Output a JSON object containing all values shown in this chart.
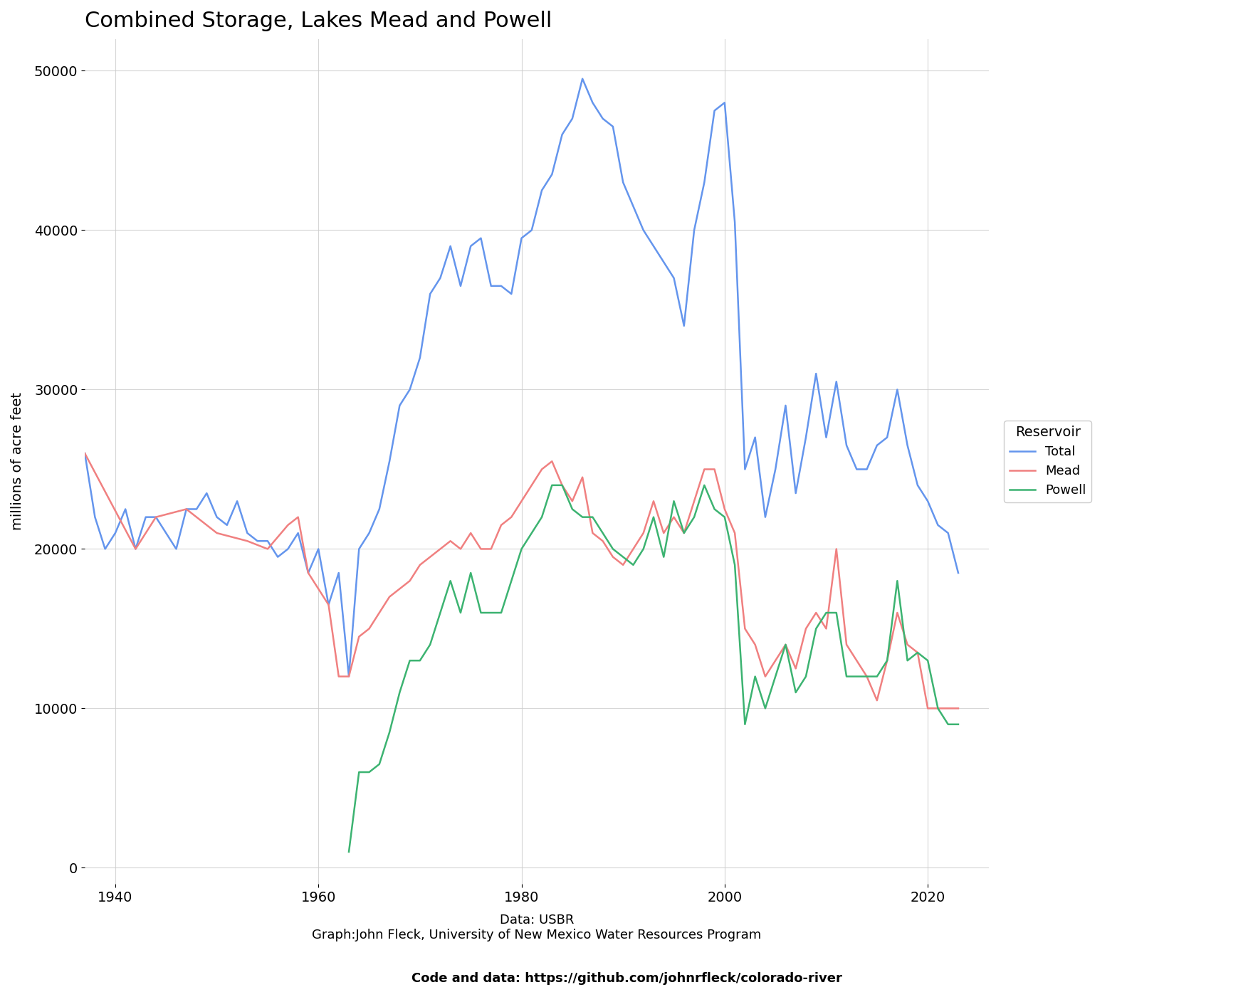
{
  "title": "Combined Storage, Lakes Mead and Powell",
  "xlabel_line1": "Data: USBR",
  "xlabel_line2": "Graph:John Fleck, University of New Mexico Water Resources Program",
  "footer": "Code and data: https://github.com/johnrfleck/colorado-river",
  "ylabel": "millions of acre feet",
  "legend_title": "Reservoir",
  "legend_labels": [
    "Mead",
    "Powell",
    "Total"
  ],
  "line_colors": {
    "Mead": "#F08080",
    "Powell": "#3CB371",
    "Total": "#6495ED"
  },
  "background_color": "#FFFFFF",
  "grid_color": "#CCCCCC",
  "xlim": [
    1937,
    2026
  ],
  "ylim": [
    -1000,
    52000
  ],
  "xticks": [
    1940,
    1960,
    1980,
    2000,
    2020
  ],
  "yticks": [
    0,
    10000,
    20000,
    30000,
    40000,
    50000
  ],
  "mead_data": {
    "years": [
      1937,
      1938,
      1939,
      1940,
      1941,
      1942,
      1943,
      1944,
      1945,
      1946,
      1947,
      1948,
      1949,
      1950,
      1951,
      1952,
      1953,
      1954,
      1955,
      1956,
      1957,
      1958,
      1959,
      1960,
      1961,
      1962,
      1963,
      1964,
      1965,
      1966,
      1967,
      1968,
      1969,
      1970,
      1971,
      1972,
      1973,
      1974,
      1975,
      1976,
      1977,
      1978,
      1979,
      1980,
      1981,
      1982,
      1983,
      1984,
      1985,
      1986,
      1987,
      1988,
      1989,
      1990,
      1991,
      1992,
      1993,
      1994,
      1995,
      1996,
      1997,
      1998,
      1999,
      2000,
      2001,
      2002,
      2003,
      2004,
      2005,
      2006,
      2007,
      2008,
      2009,
      2010,
      2011,
      2012,
      2013,
      2014,
      2015,
      2016,
      2017,
      2018,
      2019,
      2020,
      2021,
      2022,
      2023
    ],
    "values": [
      null,
      null,
      null,
      null,
      null,
      null,
      null,
      null,
      null,
      null,
      null,
      null,
      null,
      null,
      null,
      null,
      null,
      null,
      null,
      null,
      null,
      null,
      null,
      null,
      null,
      null,
      null,
      null,
      null,
      null,
      null,
      null,
      null,
      null,
      null,
      null,
      null,
      null,
      null,
      null,
      null,
      null,
      null,
      null,
      null,
      null,
      null,
      null,
      null,
      null,
      null,
      null,
      null,
      null,
      null,
      null,
      null,
      null,
      null,
      null,
      null,
      null,
      null,
      null,
      null,
      null,
      null,
      null,
      null,
      null,
      null,
      null,
      null,
      null,
      null,
      null,
      null,
      null,
      null,
      null,
      null,
      null,
      null,
      null,
      null,
      null,
      null
    ]
  },
  "mead": {
    "years": [
      1937,
      1942,
      1944,
      1947,
      1950,
      1953,
      1955,
      1957,
      1958,
      1959,
      1961,
      1962,
      1963,
      1964,
      1965,
      1966,
      1967,
      1968,
      1969,
      1970,
      1971,
      1972,
      1973,
      1974,
      1975,
      1976,
      1977,
      1978,
      1979,
      1980,
      1981,
      1982,
      1983,
      1984,
      1985,
      1986,
      1987,
      1988,
      1989,
      1990,
      1991,
      1992,
      1993,
      1994,
      1995,
      1996,
      1997,
      1998,
      1999,
      2000,
      2001,
      2002,
      2003,
      2004,
      2005,
      2006,
      2007,
      2008,
      2009,
      2010,
      2011,
      2012,
      2013,
      2014,
      2015,
      2016,
      2017,
      2018,
      2019,
      2020,
      2021,
      2022,
      2023
    ],
    "values": [
      26000,
      20000,
      22000,
      22500,
      21000,
      20500,
      20000,
      21500,
      22000,
      18500,
      16500,
      12000,
      12000,
      14500,
      15000,
      16000,
      17000,
      17500,
      18000,
      19000,
      19500,
      20000,
      20500,
      20000,
      21000,
      20000,
      20000,
      21500,
      22000,
      23000,
      24000,
      25000,
      25500,
      24000,
      23000,
      24500,
      21000,
      20500,
      19500,
      19000,
      20000,
      21000,
      23000,
      21000,
      22000,
      21000,
      23000,
      25000,
      25000,
      22500,
      21000,
      15000,
      14000,
      12000,
      13000,
      14000,
      12500,
      15000,
      16000,
      15000,
      20000,
      14000,
      13000,
      12000,
      10500,
      13000,
      16000,
      14000,
      13500,
      10000,
      10000,
      10000,
      10000
    ]
  },
  "powell": {
    "years": [
      1963,
      1964,
      1965,
      1966,
      1967,
      1968,
      1969,
      1970,
      1971,
      1972,
      1973,
      1974,
      1975,
      1976,
      1977,
      1978,
      1979,
      1980,
      1981,
      1982,
      1983,
      1984,
      1985,
      1986,
      1987,
      1988,
      1989,
      1990,
      1991,
      1992,
      1993,
      1994,
      1995,
      1996,
      1997,
      1998,
      1999,
      2000,
      2001,
      2002,
      2003,
      2004,
      2005,
      2006,
      2007,
      2008,
      2009,
      2010,
      2011,
      2012,
      2013,
      2014,
      2015,
      2016,
      2017,
      2018,
      2019,
      2020,
      2021,
      2022,
      2023
    ],
    "values": [
      1000,
      6000,
      6000,
      6500,
      8500,
      11000,
      13000,
      13000,
      14000,
      16000,
      18000,
      16000,
      18500,
      16000,
      16000,
      16000,
      18000,
      20000,
      21000,
      22000,
      24000,
      24000,
      22500,
      22000,
      22000,
      21000,
      20000,
      19500,
      19000,
      20000,
      22000,
      19500,
      23000,
      21000,
      22000,
      24000,
      22500,
      22000,
      19000,
      9000,
      12000,
      10000,
      12000,
      14000,
      11000,
      12000,
      15000,
      16000,
      16000,
      12000,
      12000,
      12000,
      12000,
      13000,
      18000,
      13000,
      13500,
      13000,
      10000,
      9000,
      9000
    ]
  },
  "total": {
    "years": [
      1937,
      1938,
      1939,
      1940,
      1941,
      1942,
      1943,
      1944,
      1945,
      1946,
      1947,
      1948,
      1949,
      1950,
      1951,
      1952,
      1953,
      1954,
      1955,
      1956,
      1957,
      1958,
      1959,
      1960,
      1961,
      1962,
      1963,
      1964,
      1965,
      1966,
      1967,
      1968,
      1969,
      1970,
      1971,
      1972,
      1973,
      1974,
      1975,
      1976,
      1977,
      1978,
      1979,
      1980,
      1981,
      1982,
      1983,
      1984,
      1985,
      1986,
      1987,
      1988,
      1989,
      1990,
      1991,
      1992,
      1993,
      1994,
      1995,
      1996,
      1997,
      1998,
      1999,
      2000,
      2001,
      2002,
      2003,
      2004,
      2005,
      2006,
      2007,
      2008,
      2009,
      2010,
      2011,
      2012,
      2013,
      2014,
      2015,
      2016,
      2017,
      2018,
      2019,
      2020,
      2021,
      2022,
      2023
    ],
    "values": [
      26000,
      22000,
      20000,
      21000,
      22500,
      20000,
      22000,
      22000,
      21000,
      20000,
      22500,
      22500,
      23500,
      22000,
      21500,
      23000,
      21000,
      20500,
      20500,
      19500,
      20000,
      21000,
      18500,
      20000,
      16500,
      18500,
      12000,
      20000,
      21000,
      22500,
      25500,
      29000,
      30000,
      32000,
      36000,
      37000,
      39000,
      36500,
      39000,
      39500,
      36500,
      36500,
      36000,
      39500,
      40000,
      42500,
      43500,
      46000,
      47000,
      49500,
      48000,
      47000,
      46500,
      43000,
      41500,
      40000,
      39000,
      38000,
      37000,
      34000,
      40000,
      43000,
      47500,
      48000,
      40500,
      25000,
      27000,
      22000,
      25000,
      29000,
      23500,
      27000,
      31000,
      27000,
      30500,
      26500,
      25000,
      25000,
      26500,
      27000,
      30000,
      26500,
      24000,
      23000,
      21500,
      21000,
      18500
    ]
  }
}
